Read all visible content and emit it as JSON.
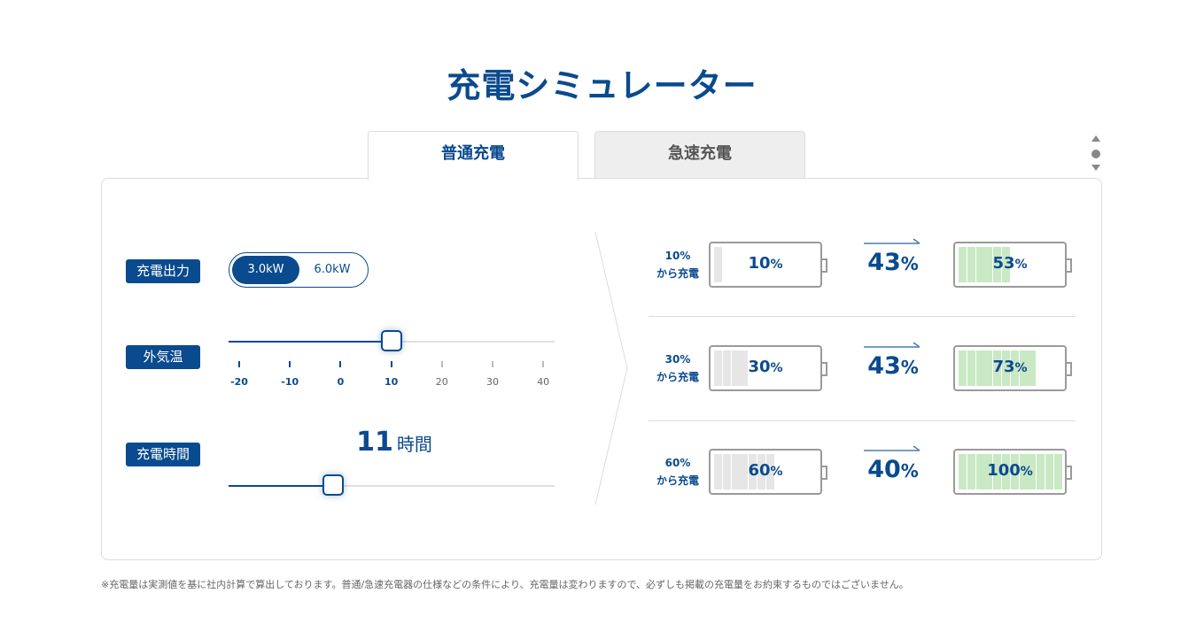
{
  "title": "充電シミュレーター",
  "tabs": [
    {
      "label": "普通充電",
      "active": true
    },
    {
      "label": "急速充電",
      "active": false
    }
  ],
  "output": {
    "label": "充電出力",
    "options": [
      "3.0kW",
      "6.0kW"
    ],
    "selected": "3.0kW"
  },
  "temperature": {
    "label": "外気温",
    "ticks": [
      "-20",
      "-10",
      "0",
      "10",
      "20",
      "30",
      "40"
    ],
    "value": 10
  },
  "charge_time": {
    "label": "充電時間",
    "value": "11",
    "unit": "時間",
    "level": 0.32
  },
  "results": [
    {
      "start_line1": "10%",
      "start_line2": "から充電",
      "start_num": "10",
      "gain_num": "43",
      "end_num": "53",
      "pct": "%",
      "start_level": 0.1,
      "end_level": 0.53
    },
    {
      "start_line1": "30%",
      "start_line2": "から充電",
      "start_num": "30",
      "gain_num": "43",
      "end_num": "73",
      "pct": "%",
      "start_level": 0.3,
      "end_level": 0.73
    },
    {
      "start_line1": "60%",
      "start_line2": "から充電",
      "start_num": "60",
      "gain_num": "40",
      "end_num": "100",
      "pct": "%",
      "start_level": 0.6,
      "end_level": 1.0
    }
  ],
  "colors": {
    "brand": "#0a4a8e",
    "start_cell": "#e6e6e6",
    "end_cell": "#c9e8c4"
  },
  "note": "※充電量は実測値を基に社内計算で算出しております。普通/急速充電器の仕様などの条件により、充電量は変わりますので、必ずしも掲載の充電量をお約束するものではございません。"
}
